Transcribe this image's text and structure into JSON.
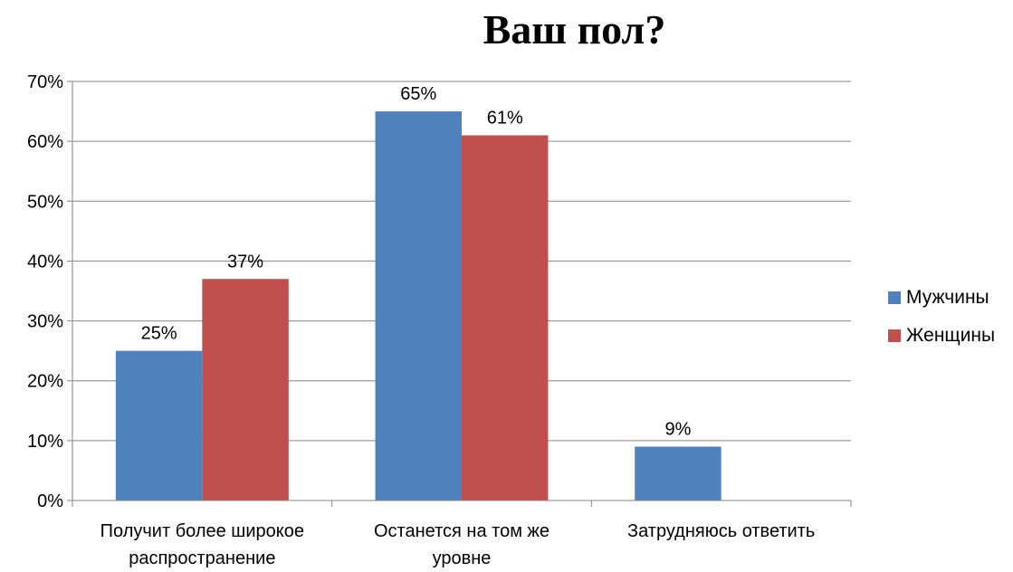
{
  "chart_data": {
    "type": "bar",
    "title": "Ваш пол?",
    "categories": [
      [
        "Получит более широкое",
        "распространение"
      ],
      [
        "Останется на том же",
        "уровне"
      ],
      [
        "Затрудняюсь ответить"
      ]
    ],
    "series": [
      {
        "name": "Мужчины",
        "color": "#4F81BD",
        "values": [
          25,
          65,
          9
        ],
        "labels": [
          "25%",
          "65%",
          "9%"
        ]
      },
      {
        "name": "Женщины",
        "color": "#C0504D",
        "values": [
          37,
          61,
          null
        ],
        "labels": [
          "37%",
          "61%",
          ""
        ]
      }
    ],
    "ylim": [
      0,
      70
    ],
    "yticks": [
      0,
      10,
      20,
      30,
      40,
      50,
      60,
      70
    ],
    "ytick_labels": [
      "0%",
      "10%",
      "20%",
      "30%",
      "40%",
      "50%",
      "60%",
      "70%"
    ],
    "grid": true,
    "legend_position": "right"
  }
}
